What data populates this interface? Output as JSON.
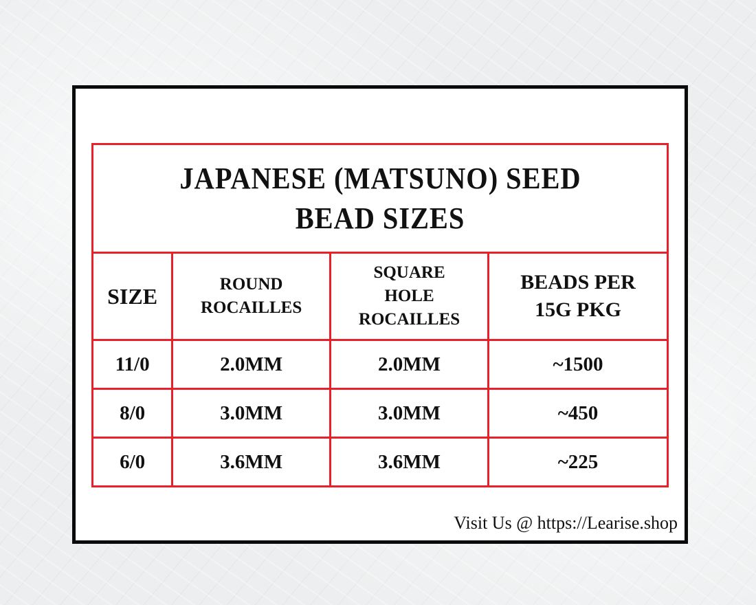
{
  "title": "Japanese (Matsuno) Seed Bead Sizes",
  "title_lines": [
    "Japanese (Matsuno) Seed",
    "Bead  Sizes"
  ],
  "columns": [
    "Size",
    "Round Rocailles",
    "Square Hole Rocailles",
    "Beads per 15g pkg"
  ],
  "column_lines": [
    [
      "Size"
    ],
    [
      "Round",
      "Rocailles"
    ],
    [
      "Square",
      "Hole",
      "Rocailles"
    ],
    [
      "Beads per",
      "15g pkg"
    ]
  ],
  "rows": [
    [
      "11/0",
      "2.0mm",
      "2.0mm",
      "~1500"
    ],
    [
      "8/0",
      "3.0mm",
      "3.0mm",
      "~450"
    ],
    [
      "6/0",
      "3.6mm",
      "3.6mm",
      "~225"
    ]
  ],
  "footer": "Visit Us @ https://Learise.shop",
  "colors": {
    "table_border": "#e8202a",
    "card_border": "#0a0a0a"
  }
}
